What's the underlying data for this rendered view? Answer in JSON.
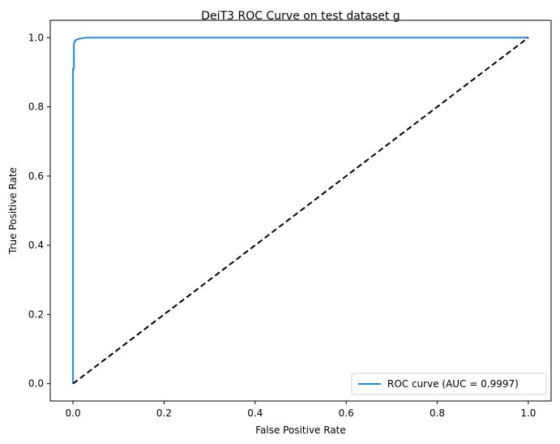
{
  "chart_data": {
    "type": "line",
    "title": "DeiT3 ROC Curve on test dataset g",
    "xlabel": "False Positive Rate",
    "ylabel": "True Positive Rate",
    "xlim": [
      -0.05,
      1.05
    ],
    "ylim": [
      -0.05,
      1.05
    ],
    "xticks": [
      "0.0",
      "0.2",
      "0.4",
      "0.6",
      "0.8",
      "1.0"
    ],
    "yticks": [
      "0.0",
      "0.2",
      "0.4",
      "0.6",
      "0.8",
      "1.0"
    ],
    "grid": false,
    "legend_position": "lower right",
    "series": [
      {
        "name": "ROC curve (AUC = 0.9997)",
        "color": "#1e88e5",
        "style": "solid",
        "x": [
          0.0,
          0.0,
          0.002,
          0.002,
          0.004,
          0.006,
          0.01,
          0.015,
          0.02,
          0.03,
          0.05,
          0.1,
          0.5,
          1.0
        ],
        "y": [
          0.0,
          0.91,
          0.91,
          0.98,
          0.99,
          0.993,
          0.995,
          0.997,
          0.998,
          1.0,
          1.0,
          1.0,
          1.0,
          1.0
        ]
      },
      {
        "name": "",
        "color": "#000000",
        "style": "dashed",
        "x": [
          0.0,
          1.0
        ],
        "y": [
          0.0,
          1.0
        ]
      }
    ]
  }
}
